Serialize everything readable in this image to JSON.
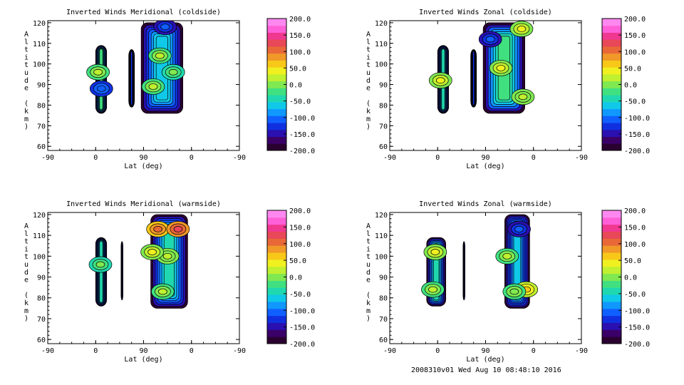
{
  "footer": "2008310v01 Wed Aug 10 08:48:10 2016",
  "colors": {
    "colorbar": [
      "#2a0030",
      "#3a0068",
      "#2a10b0",
      "#1030e0",
      "#1060ff",
      "#1098ff",
      "#10c8e8",
      "#20d8b0",
      "#40e080",
      "#80e850",
      "#c0f030",
      "#f0f020",
      "#f8c818",
      "#f09828",
      "#e86838",
      "#e84858",
      "#f03890",
      "#ff60d8",
      "#ff88f0"
    ],
    "contour": "#000000"
  },
  "chart_data": [
    {
      "type": "heatmap",
      "title": "Inverted Winds Meridional (coldside)",
      "xlabel": "Lat (deg)",
      "ylabel": "Altitude (km)",
      "x_ticks": [
        "-90",
        "0",
        "90",
        "0",
        "-90"
      ],
      "y_ticks": [
        60,
        70,
        80,
        90,
        100,
        110,
        120
      ],
      "ylim": [
        58,
        121
      ],
      "colorbar": {
        "range": [
          -200,
          200
        ],
        "ticks": [
          "200.0",
          "150.0",
          "100.0",
          "50.0",
          "0.0",
          "-50.0",
          "-100.0",
          "-150.0",
          "-200.0"
        ]
      },
      "regions": [
        {
          "x": [
            0,
            0.23
          ],
          "y": [
            76,
            109
          ],
          "center_value": -10
        },
        {
          "x": [
            0.69,
            0.81
          ],
          "y": [
            79,
            107
          ],
          "center_value": -120
        },
        {
          "x": [
            0.95,
            1.82
          ],
          "y": [
            76,
            120
          ],
          "center_value": -40
        }
      ],
      "features": [
        {
          "x": 0.05,
          "y": 96,
          "value": 25
        },
        {
          "x": 0.12,
          "y": 88,
          "value": -95
        },
        {
          "x": 1.34,
          "y": 104,
          "value": 25
        },
        {
          "x": 1.2,
          "y": 89,
          "value": 20
        },
        {
          "x": 1.62,
          "y": 96,
          "value": 5
        },
        {
          "x": 1.45,
          "y": 118,
          "value": -110
        }
      ]
    },
    {
      "type": "heatmap",
      "title": "Inverted Winds Zonal (coldside)",
      "xlabel": "Lat (deg)",
      "ylabel": "Altitude (km)",
      "x_ticks": [
        "-90",
        "0",
        "90",
        "0",
        "-90"
      ],
      "y_ticks": [
        60,
        70,
        80,
        90,
        100,
        110,
        120
      ],
      "ylim": [
        58,
        121
      ],
      "colorbar": {
        "range": [
          -200,
          200
        ],
        "ticks": [
          "200.0",
          "150.0",
          "100.0",
          "50.0",
          "0.0",
          "-50.0",
          "-100.0",
          "-150.0",
          "-200.0"
        ]
      },
      "regions": [
        {
          "x": [
            0,
            0.23
          ],
          "y": [
            76,
            109
          ],
          "center_value": -35
        },
        {
          "x": [
            0.69,
            0.81
          ],
          "y": [
            79,
            107
          ],
          "center_value": -130
        },
        {
          "x": [
            0.95,
            1.82
          ],
          "y": [
            76,
            120
          ],
          "center_value": -15
        }
      ],
      "features": [
        {
          "x": 0.06,
          "y": 92,
          "value": 35
        },
        {
          "x": 1.32,
          "y": 98,
          "value": 45
        },
        {
          "x": 1.75,
          "y": 117,
          "value": 40
        },
        {
          "x": 1.78,
          "y": 84,
          "value": 30
        },
        {
          "x": 1.1,
          "y": 112,
          "value": -100
        }
      ]
    },
    {
      "type": "heatmap",
      "title": "Inverted Winds Meridional (warmside)",
      "xlabel": "Lat (deg)",
      "ylabel": "Altitude (km)",
      "x_ticks": [
        "-90",
        "0",
        "90",
        "0",
        "-90"
      ],
      "y_ticks": [
        60,
        70,
        80,
        90,
        100,
        110,
        120
      ],
      "ylim": [
        58,
        121
      ],
      "colorbar": {
        "range": [
          -200,
          200
        ],
        "ticks": [
          "200.0",
          "150.0",
          "100.0",
          "50.0",
          "0.0",
          "-50.0",
          "-100.0",
          "-150.0",
          "-200.0"
        ]
      },
      "regions": [
        {
          "x": [
            0,
            0.23
          ],
          "y": [
            76,
            109
          ],
          "center_value": -30
        },
        {
          "x": [
            0.53,
            0.57
          ],
          "y": [
            79,
            107
          ],
          "center_value": -150
        },
        {
          "x": [
            1.15,
            1.92
          ],
          "y": [
            75,
            120
          ],
          "center_value": -35
        }
      ],
      "features": [
        {
          "x": 1.3,
          "y": 113,
          "value": 110
        },
        {
          "x": 1.72,
          "y": 113,
          "value": 120
        },
        {
          "x": 1.5,
          "y": 100,
          "value": 30
        },
        {
          "x": 1.18,
          "y": 102,
          "value": 40
        },
        {
          "x": 1.4,
          "y": 83,
          "value": 15
        },
        {
          "x": 0.1,
          "y": 96,
          "value": 0
        }
      ]
    },
    {
      "type": "heatmap",
      "title": "Inverted Winds Zonal (warmside)",
      "xlabel": "Lat (deg)",
      "ylabel": "Altitude (km)",
      "x_ticks": [
        "-90",
        "0",
        "90",
        "0",
        "-90"
      ],
      "y_ticks": [
        60,
        70,
        80,
        90,
        100,
        110,
        120
      ],
      "ylim": [
        58,
        121
      ],
      "colorbar": {
        "range": [
          -200,
          200
        ],
        "ticks": [
          "200.0",
          "150.0",
          "100.0",
          "50.0",
          "0.0",
          "-50.0",
          "-100.0",
          "-150.0",
          "-200.0"
        ]
      },
      "regions": [
        {
          "x": [
            -0.23,
            0.17
          ],
          "y": [
            76,
            109
          ],
          "center_value": -35
        },
        {
          "x": [
            0.53,
            0.57
          ],
          "y": [
            79,
            107
          ],
          "center_value": -150
        },
        {
          "x": [
            1.4,
            1.92
          ],
          "y": [
            75,
            120
          ],
          "center_value": -60
        }
      ],
      "features": [
        {
          "x": -0.05,
          "y": 102,
          "value": 35
        },
        {
          "x": -0.1,
          "y": 84,
          "value": 20
        },
        {
          "x": 1.45,
          "y": 100,
          "value": 25
        },
        {
          "x": 1.85,
          "y": 84,
          "value": 55
        },
        {
          "x": 1.6,
          "y": 83,
          "value": 10
        },
        {
          "x": 1.7,
          "y": 113,
          "value": -100
        }
      ]
    }
  ]
}
